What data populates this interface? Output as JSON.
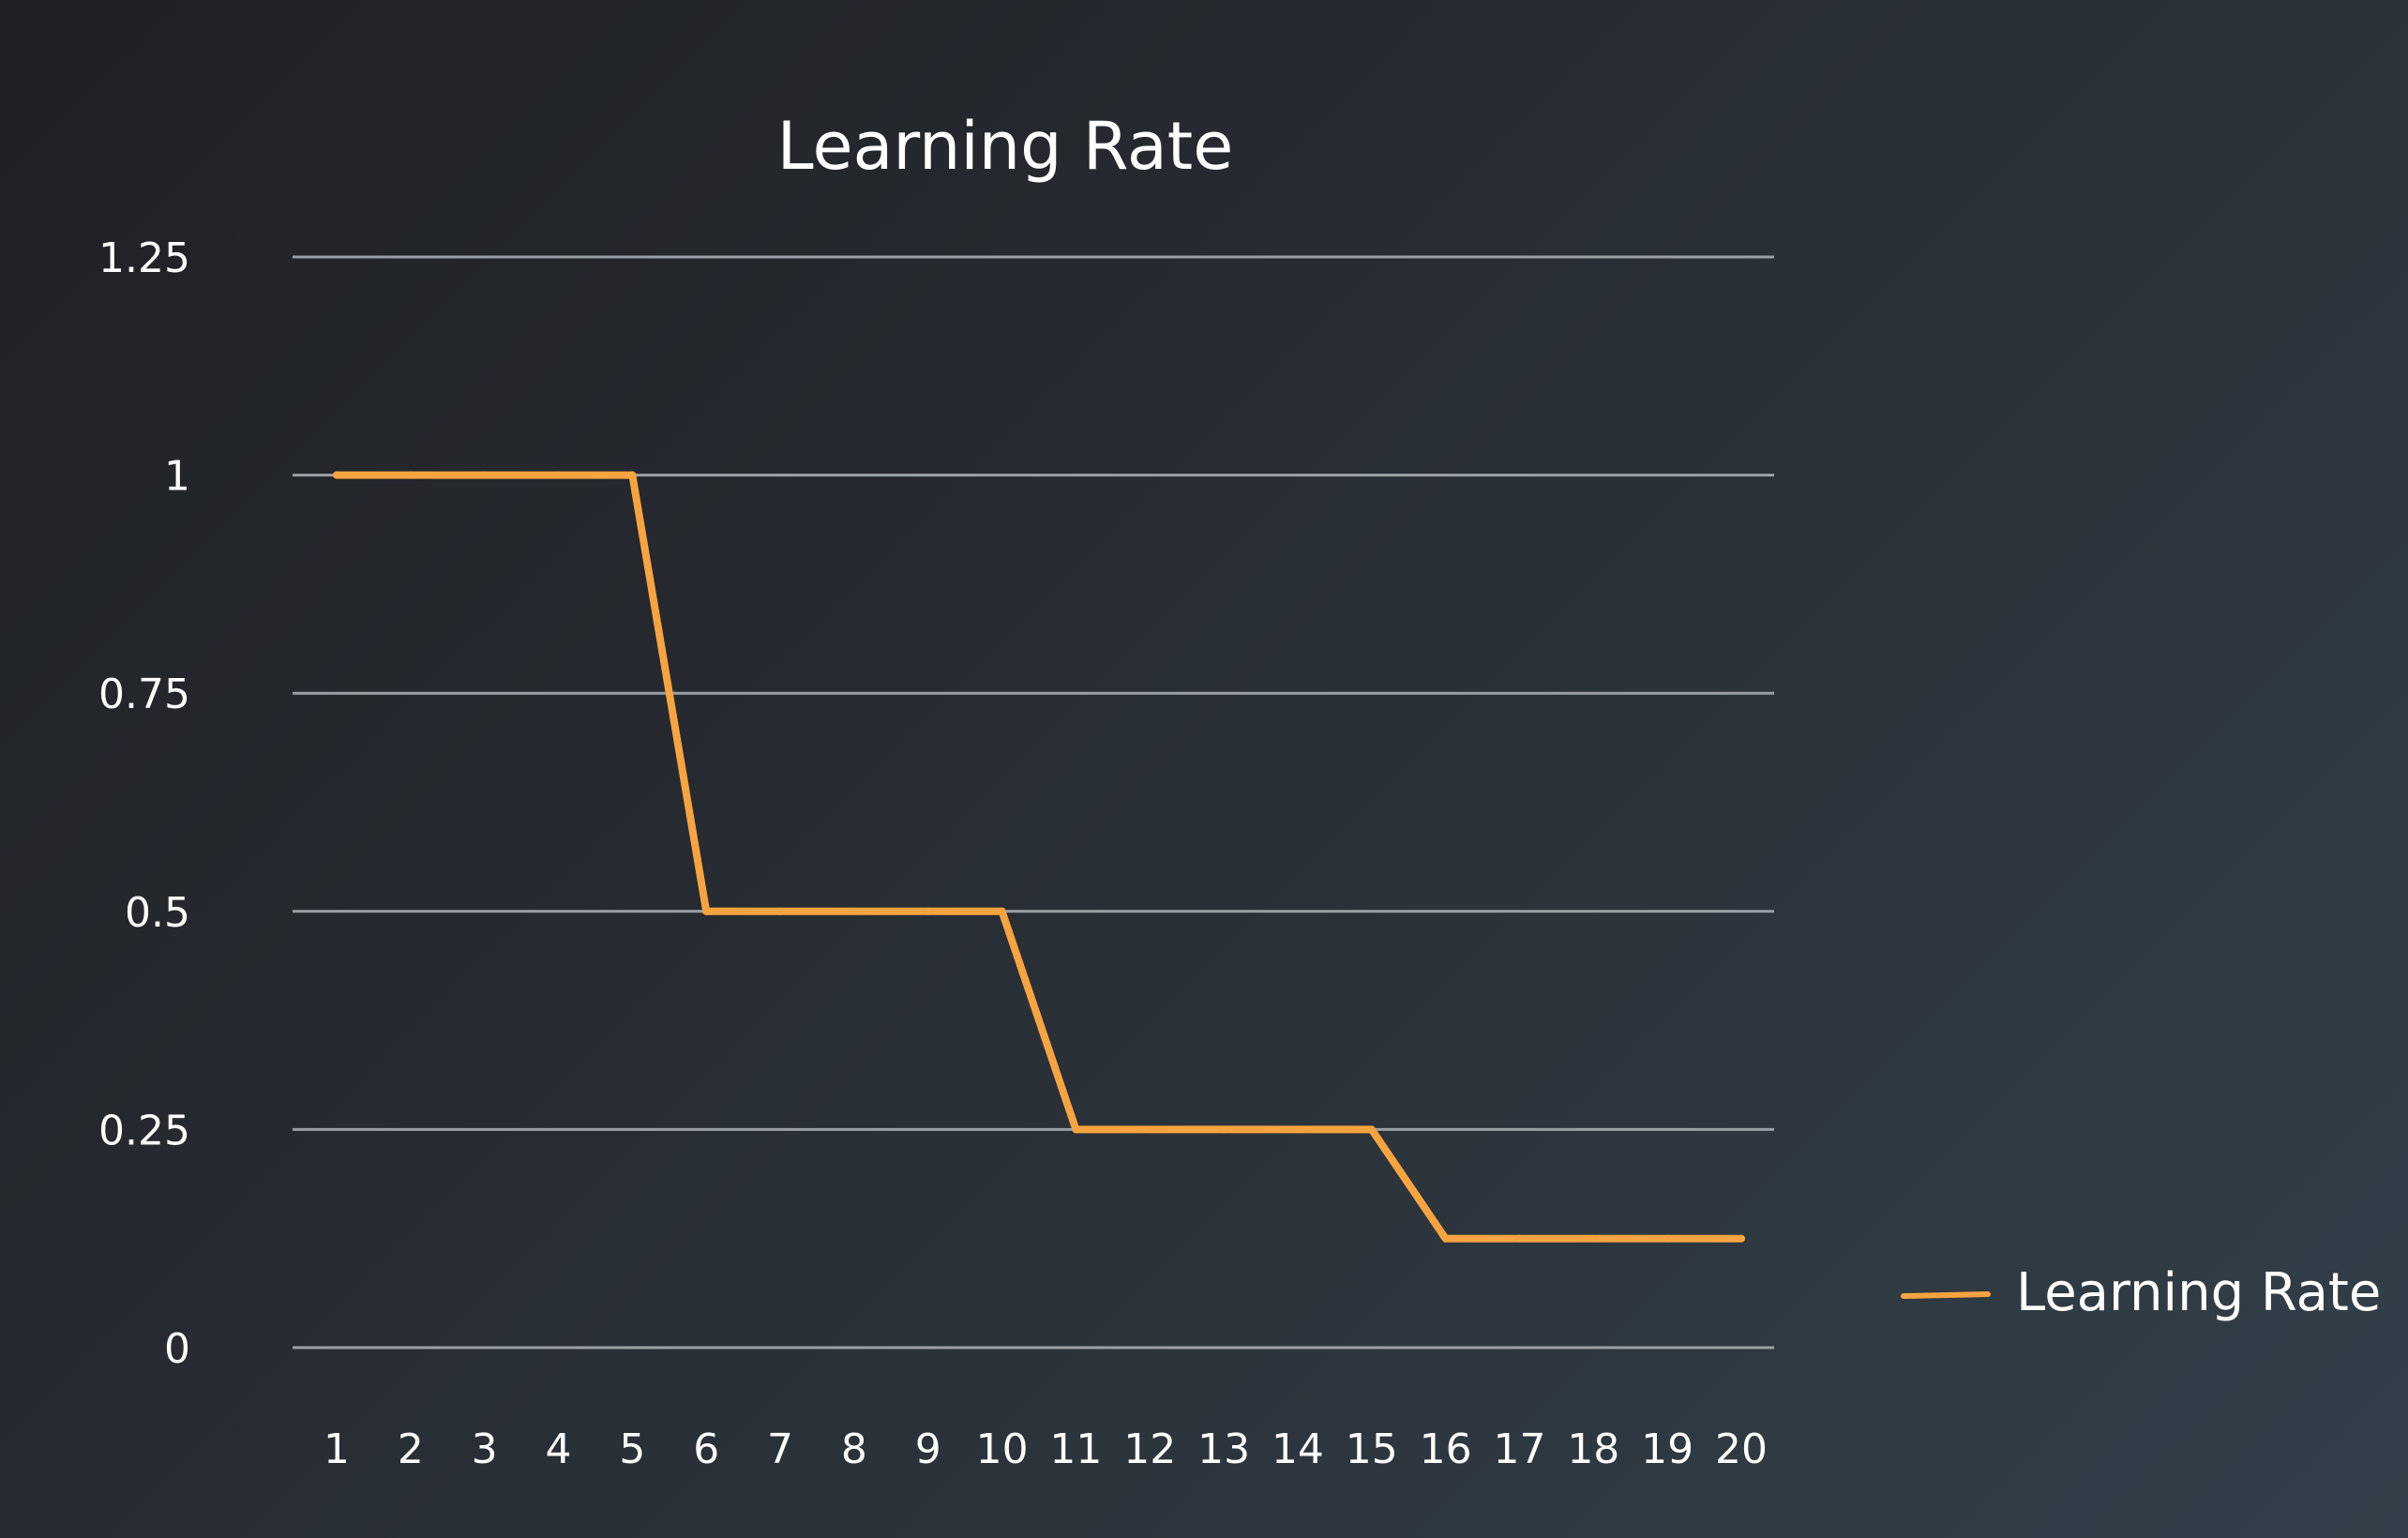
{
  "colors": {
    "series": "#f7a440",
    "text": "#ffffff",
    "grid": "#9aa0a6"
  },
  "chart_data": {
    "type": "line",
    "title": "Learning Rate",
    "xlabel": "",
    "ylabel": "",
    "categories": [
      "1",
      "2",
      "3",
      "4",
      "5",
      "6",
      "7",
      "8",
      "9",
      "10",
      "11",
      "12",
      "13",
      "14",
      "15",
      "16",
      "17",
      "18",
      "19",
      "20"
    ],
    "y_ticks": [
      "0",
      "0.25",
      "0.5",
      "0.75",
      "1",
      "1.25"
    ],
    "ylim": [
      0,
      1.25
    ],
    "grid": true,
    "legend_position": "right",
    "series": [
      {
        "name": "Learning Rate",
        "values": [
          1,
          1,
          1,
          1,
          1,
          0.5,
          0.5,
          0.5,
          0.5,
          0.5,
          0.25,
          0.25,
          0.25,
          0.25,
          0.25,
          0.125,
          0.125,
          0.125,
          0.125,
          0.125
        ]
      }
    ]
  }
}
